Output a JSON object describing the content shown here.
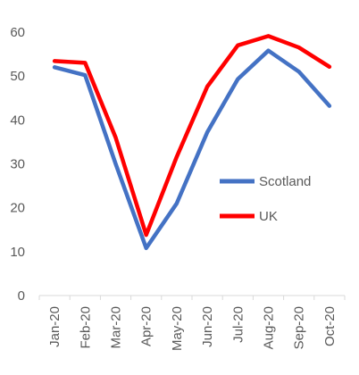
{
  "chart_data": {
    "type": "line",
    "title": "",
    "xlabel": "",
    "ylabel": "",
    "categories": [
      "Jan-20",
      "Feb-20",
      "Mar-20",
      "Apr-20",
      "May-20",
      "Jun-20",
      "Jul-20",
      "Aug-20",
      "Sep-20",
      "Oct-20"
    ],
    "ylim": [
      0,
      60
    ],
    "yticks": [
      "0",
      "10",
      "20",
      "30",
      "40",
      "50",
      "60"
    ],
    "grid": false,
    "legend_position": "center-right",
    "series": [
      {
        "name": "Scotland",
        "color": "#4472C4",
        "values": [
          52,
          50.2,
          30,
          10.8,
          21,
          37.2,
          49.3,
          55.8,
          51,
          43.2
        ]
      },
      {
        "name": "UK",
        "color": "#FF0000",
        "values": [
          53.4,
          53,
          36,
          13.8,
          31.6,
          47.6,
          57,
          59.1,
          56.5,
          52.1
        ]
      }
    ]
  }
}
